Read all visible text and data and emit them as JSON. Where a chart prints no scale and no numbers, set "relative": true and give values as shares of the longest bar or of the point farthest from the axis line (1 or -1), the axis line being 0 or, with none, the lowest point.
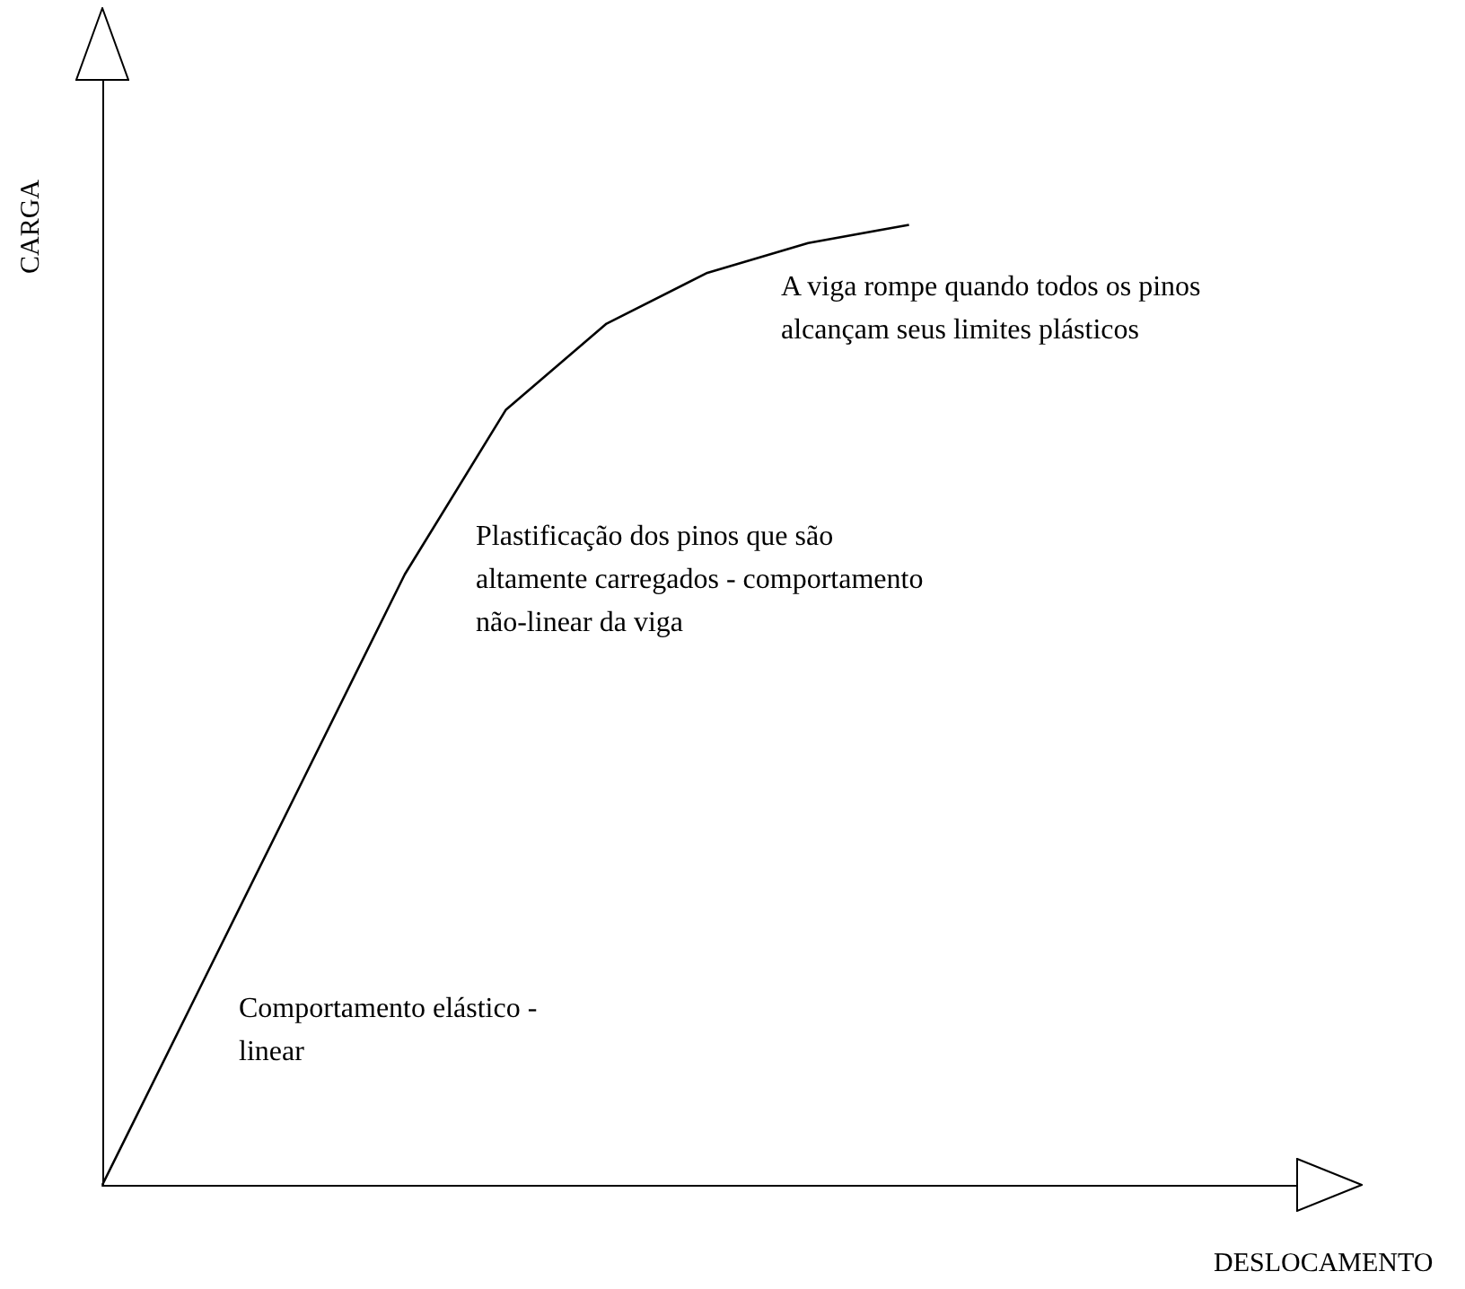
{
  "chart_data": {
    "type": "line",
    "relative": true,
    "ylabel": "CARGA",
    "color": "#000000",
    "marker": "none",
    "categories": [
      null,
      null,
      null,
      null,
      null,
      null,
      null,
      null,
      null
    ],
    "values": [
      0,
      0.212,
      0.424,
      0.636,
      0.807,
      0.897,
      0.95,
      0.981,
      1
    ],
    "annotations": [
      "A viga rompe quando todos os pinos alcançam seus limites plásticos",
      "Plastificação dos pinos que são altamente carregados - comportamento não-linear da viga",
      "Comportamento elástico - linear",
      "DESLOCAMENTO"
    ]
  }
}
